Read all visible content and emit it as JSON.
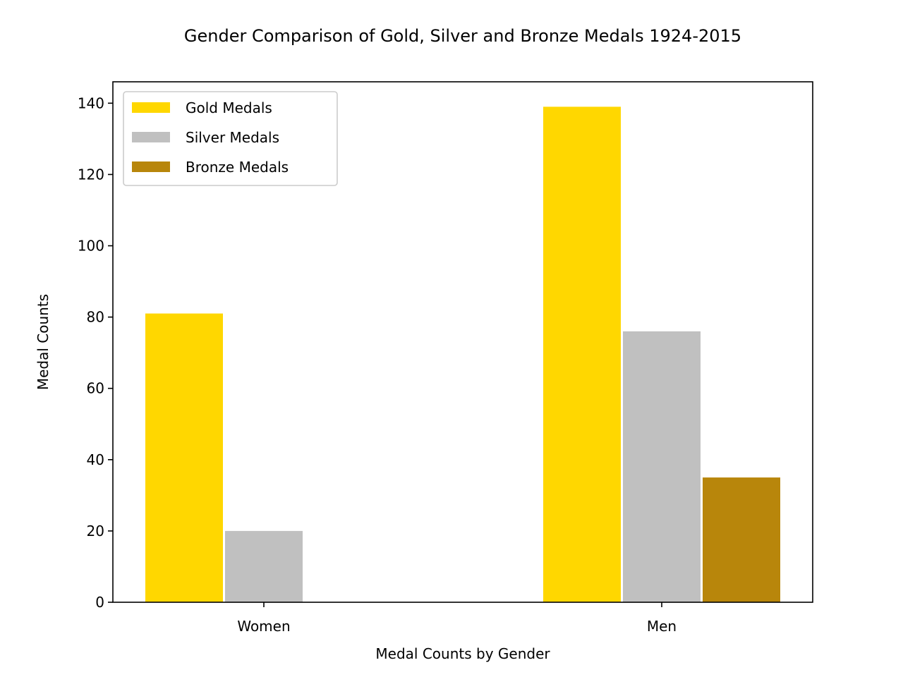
{
  "chart_data": {
    "type": "bar",
    "title": "Gender Comparison of Gold, Silver and Bronze Medals 1924-2015",
    "xlabel": "Medal Counts by Gender",
    "ylabel": "Medal Counts",
    "categories": [
      "Women",
      "Men"
    ],
    "series": [
      {
        "name": "Gold Medals",
        "values": [
          81,
          139
        ],
        "color": "#FFD700"
      },
      {
        "name": "Silver Medals",
        "values": [
          20,
          76
        ],
        "color": "#C0C0C0"
      },
      {
        "name": "Bronze Medals",
        "values": [
          0,
          35
        ],
        "color": "#B8860B"
      }
    ],
    "ylim": [
      0,
      146
    ],
    "yticks": [
      "0",
      "20",
      "40",
      "60",
      "80",
      "100",
      "120",
      "140"
    ],
    "grid": false,
    "legend_position": "top-left"
  }
}
